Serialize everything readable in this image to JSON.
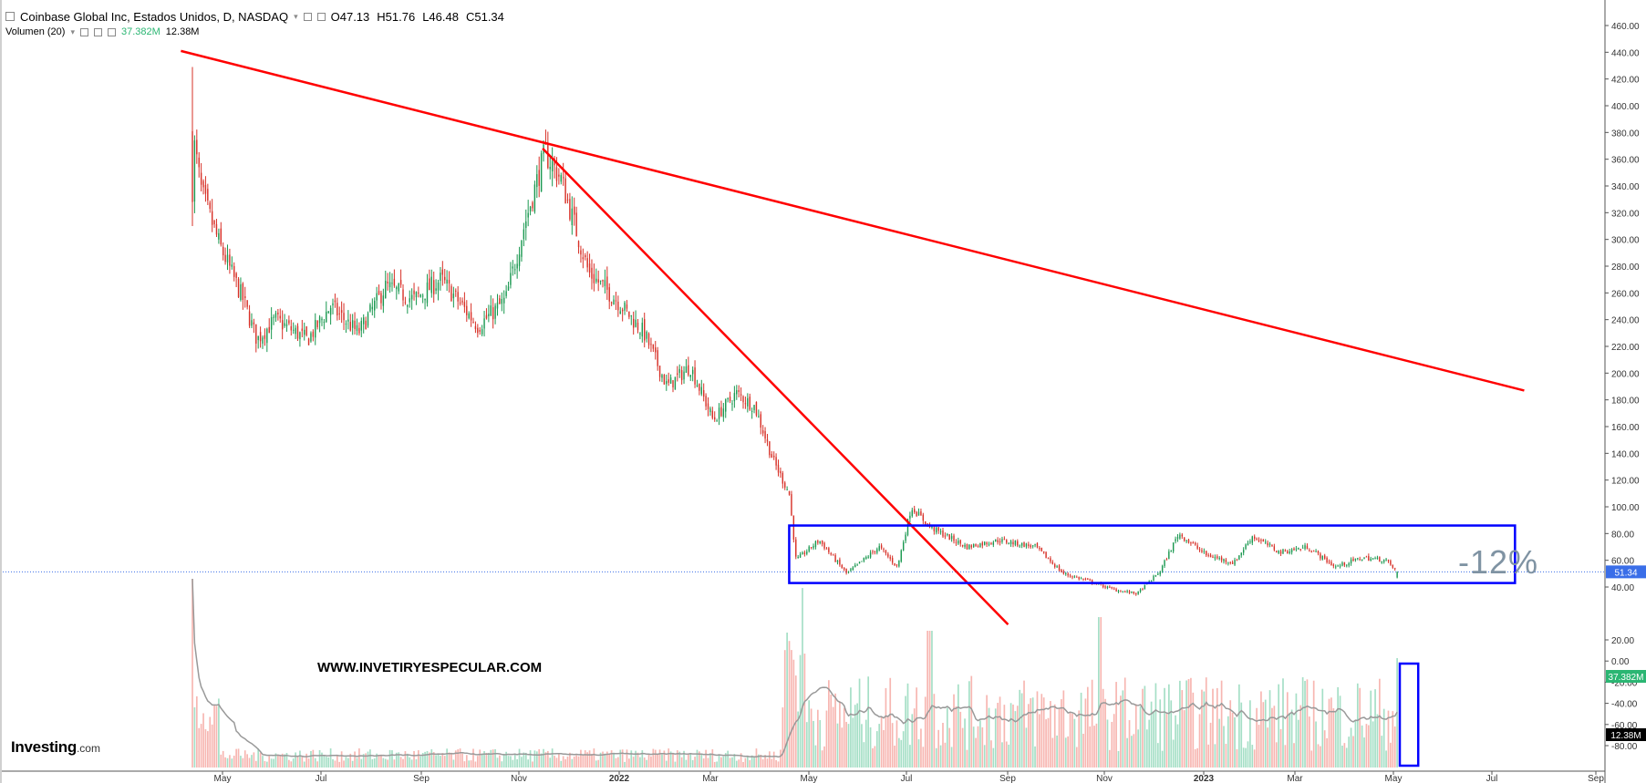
{
  "header": {
    "title": "Coinbase Global Inc, Estados Unidos, D, NASDAQ",
    "ohlc": {
      "open": "O47.13",
      "high": "H51.76",
      "low": "L46.48",
      "close": "C51.34"
    },
    "volume_label": "Volumen (20)",
    "volume_value": "37.382M",
    "volume_ma_value": "12.38M"
  },
  "branding": {
    "logo_main": "Investing",
    "logo_suffix": ".com",
    "watermark": "WWW.INVETIRYESPECULAR.COM"
  },
  "annotation": {
    "pct_text": "-12%"
  },
  "colors": {
    "up": "#1a9850",
    "down": "#d73027",
    "vol_up": "#a5dfc6",
    "vol_down": "#f7b6b1",
    "trendline": "#ff0000",
    "box": "#0000ff",
    "grid_axis": "#555555",
    "price_tag_bg": "#3a6ee8",
    "vol_tag_bg": "#2bb673",
    "ma_tag_bg": "#000000",
    "ma_line": "#999999",
    "current_price_line": "#3a6ee8"
  },
  "chart_data": {
    "type": "candlestick",
    "title": "Coinbase Global Inc, Estados Unidos, D, NASDAQ",
    "price_axis": {
      "ticks": [
        460,
        440,
        420,
        400,
        380,
        360,
        340,
        320,
        300,
        280,
        260,
        240,
        220,
        200,
        180,
        160,
        140,
        120,
        100,
        80,
        60,
        40
      ],
      "tick_labels": [
        "460.00",
        "440.00",
        "420.00",
        "400.00",
        "380.00",
        "360.00",
        "340.00",
        "320.00",
        "300.00",
        "280.00",
        "260.00",
        "240.00",
        "220.00",
        "200.00",
        "180.00",
        "160.00",
        "140.00",
        "120.00",
        "100.00",
        "80.00",
        "60.00",
        "40.00"
      ],
      "ylim": [
        20,
        485
      ],
      "current_price": 51.34,
      "current_price_label": "51.34"
    },
    "volume_axis": {
      "ticks": [
        20,
        0,
        -20,
        -40,
        -60,
        -80
      ],
      "tick_labels": [
        "20.00",
        "0.00",
        "-20.00",
        "-40.00",
        "-60.00",
        "-80.00"
      ],
      "volume_tag": "37.382M",
      "ma_tag": "12.38M"
    },
    "x_axis": {
      "labels": [
        "May",
        "Jul",
        "Sep",
        "Nov",
        "2022",
        "Mar",
        "May",
        "Jul",
        "Sep",
        "Nov",
        "2023",
        "Mar",
        "May",
        "Jul",
        "Sep"
      ],
      "months": [
        1,
        3,
        5,
        7,
        9,
        11,
        13,
        15,
        17,
        19,
        21,
        23,
        25,
        27,
        29
      ]
    },
    "price_anchors": [
      {
        "t": 0.0,
        "v": 380
      },
      {
        "t": 0.2,
        "v": 335
      },
      {
        "t": 0.6,
        "v": 295
      },
      {
        "t": 1.1,
        "v": 255
      },
      {
        "t": 1.4,
        "v": 225
      },
      {
        "t": 1.8,
        "v": 240
      },
      {
        "t": 2.5,
        "v": 225
      },
      {
        "t": 3.0,
        "v": 250
      },
      {
        "t": 3.6,
        "v": 230
      },
      {
        "t": 4.2,
        "v": 265
      },
      {
        "t": 4.8,
        "v": 255
      },
      {
        "t": 5.4,
        "v": 270
      },
      {
        "t": 6.2,
        "v": 235
      },
      {
        "t": 6.8,
        "v": 255
      },
      {
        "t": 7.2,
        "v": 310
      },
      {
        "t": 7.65,
        "v": 365
      },
      {
        "t": 8.0,
        "v": 345
      },
      {
        "t": 8.6,
        "v": 275
      },
      {
        "t": 9.2,
        "v": 255
      },
      {
        "t": 9.8,
        "v": 230
      },
      {
        "t": 10.3,
        "v": 190
      },
      {
        "t": 10.8,
        "v": 205
      },
      {
        "t": 11.3,
        "v": 165
      },
      {
        "t": 11.8,
        "v": 185
      },
      {
        "t": 12.2,
        "v": 175
      },
      {
        "t": 12.6,
        "v": 135
      },
      {
        "t": 12.95,
        "v": 110
      },
      {
        "t": 13.1,
        "v": 60
      },
      {
        "t": 13.6,
        "v": 75
      },
      {
        "t": 14.2,
        "v": 50
      },
      {
        "t": 14.9,
        "v": 70
      },
      {
        "t": 15.3,
        "v": 55
      },
      {
        "t": 15.6,
        "v": 100
      },
      {
        "t": 16.0,
        "v": 85
      },
      {
        "t": 16.8,
        "v": 70
      },
      {
        "t": 17.5,
        "v": 75
      },
      {
        "t": 18.3,
        "v": 70
      },
      {
        "t": 18.9,
        "v": 50
      },
      {
        "t": 19.4,
        "v": 45
      },
      {
        "t": 20.0,
        "v": 38
      },
      {
        "t": 20.5,
        "v": 35
      },
      {
        "t": 21.0,
        "v": 52
      },
      {
        "t": 21.4,
        "v": 80
      },
      {
        "t": 22.0,
        "v": 64
      },
      {
        "t": 22.6,
        "v": 58
      },
      {
        "t": 23.0,
        "v": 78
      },
      {
        "t": 23.6,
        "v": 66
      },
      {
        "t": 24.2,
        "v": 70
      },
      {
        "t": 24.8,
        "v": 55
      },
      {
        "t": 25.4,
        "v": 62
      },
      {
        "t": 25.9,
        "v": 60
      },
      {
        "t": 26.15,
        "v": 51
      }
    ],
    "trendlines": [
      {
        "from": {
          "t": -0.25,
          "v": 441
        },
        "to": {
          "t": 28.9,
          "v": 187
        }
      },
      {
        "from": {
          "t": 7.6,
          "v": 368
        },
        "to": {
          "t": 17.7,
          "v": 12
        }
      }
    ],
    "range_box": {
      "t_start": 12.95,
      "t_end": 28.7,
      "v_top": 86,
      "v_bottom": 43
    },
    "volume_box": {
      "t_start": 26.2,
      "t_end": 26.6
    },
    "percent_change": "-12%"
  }
}
